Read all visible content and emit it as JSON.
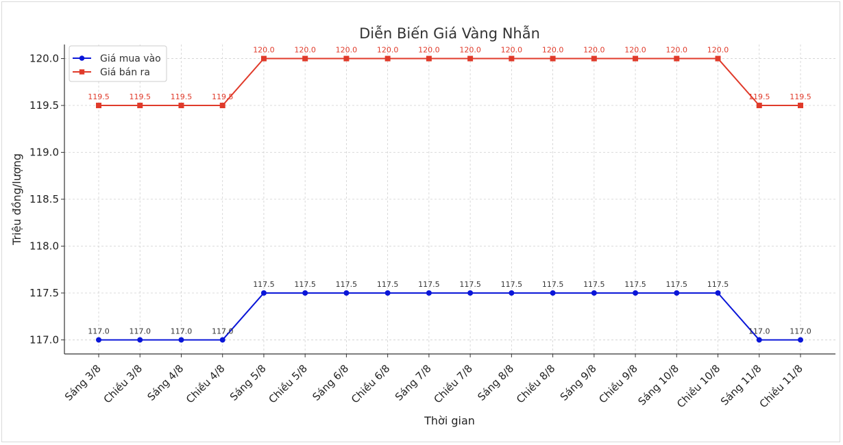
{
  "chart_data": {
    "type": "line",
    "title": "Diễn Biến Giá Vàng Nhẫn",
    "xlabel": "Thời gian",
    "ylabel": "Triệu đồng/lượng",
    "ylim": [
      116.85,
      120.15
    ],
    "yticks": [
      "117.0",
      "117.5",
      "118.0",
      "118.5",
      "119.0",
      "119.5",
      "120.0"
    ],
    "ytick_values": [
      117.0,
      117.5,
      118.0,
      118.5,
      119.0,
      119.5,
      120.0
    ],
    "grid": true,
    "legend_position": "top-left",
    "categories": [
      "Sáng 3/8",
      "Chiều 3/8",
      "Sáng 4/8",
      "Chiều 4/8",
      "Sáng 5/8",
      "Chiều 5/8",
      "Sáng 6/8",
      "Chiều 6/8",
      "Sáng 7/8",
      "Chiều 7/8",
      "Sáng 8/8",
      "Chiều 8/8",
      "Sáng 9/8",
      "Chiều 9/8",
      "Sáng 10/8",
      "Chiều 10/8",
      "Sáng 11/8",
      "Chiều 11/8"
    ],
    "series": [
      {
        "name": "Giá mua vào",
        "color": "#0a16d8",
        "marker": "circle",
        "values": [
          117.0,
          117.0,
          117.0,
          117.0,
          117.5,
          117.5,
          117.5,
          117.5,
          117.5,
          117.5,
          117.5,
          117.5,
          117.5,
          117.5,
          117.5,
          117.5,
          117.0,
          117.0
        ],
        "labels": [
          "117.0",
          "117.0",
          "117.0",
          "117.0",
          "117.5",
          "117.5",
          "117.5",
          "117.5",
          "117.5",
          "117.5",
          "117.5",
          "117.5",
          "117.5",
          "117.5",
          "117.5",
          "117.5",
          "117.0",
          "117.0"
        ]
      },
      {
        "name": "Giá bán ra",
        "color": "#e03a2a",
        "marker": "square",
        "values": [
          119.5,
          119.5,
          119.5,
          119.5,
          120.0,
          120.0,
          120.0,
          120.0,
          120.0,
          120.0,
          120.0,
          120.0,
          120.0,
          120.0,
          120.0,
          120.0,
          119.5,
          119.5
        ],
        "labels": [
          "119.5",
          "119.5",
          "119.5",
          "119.5",
          "120.0",
          "120.0",
          "120.0",
          "120.0",
          "120.0",
          "120.0",
          "120.0",
          "120.0",
          "120.0",
          "120.0",
          "120.0",
          "120.0",
          "119.5",
          "119.5"
        ]
      }
    ]
  }
}
